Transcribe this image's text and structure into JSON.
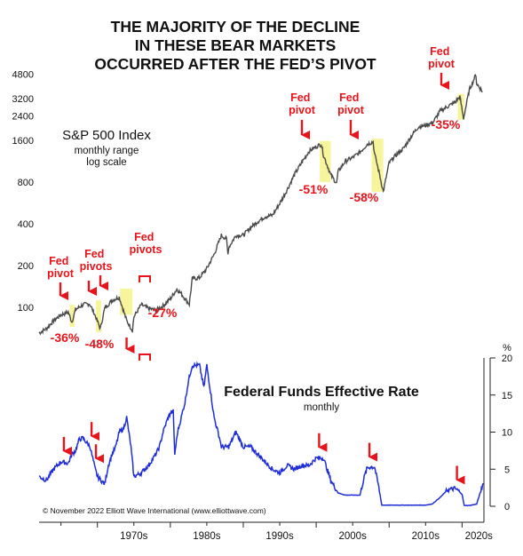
{
  "chart_data": [
    {
      "type": "line",
      "title": "THE MAJORITY OF THE DECLINE IN THESE BEAR MARKETS OCCURRED AFTER THE FED’S PIVOT",
      "title_lines": [
        "THE MAJORITY OF THE DECLINE",
        "IN THESE BEAR MARKETS",
        "OCCURRED AFTER THE FED’S PIVOT"
      ],
      "label_lines": [
        "S&P 500 Index",
        "monthly range",
        "log scale"
      ],
      "y_scale": "log",
      "yticks": [
        100,
        200,
        400,
        800,
        1600,
        2400,
        3200,
        4800
      ],
      "ylim": [
        70,
        5200
      ],
      "xlim": [
        1962,
        2023
      ],
      "grid": false,
      "color": "#4a4a4a",
      "series": [
        {
          "x": [
            1962,
            1963,
            1964,
            1965,
            1966,
            1966.5,
            1967,
            1968,
            1968.9,
            1969.5,
            1970.4,
            1971,
            1972,
            1973,
            1974,
            1974.8,
            1975,
            1976,
            1977,
            1978,
            1979,
            1980,
            1980.9,
            1981.5,
            1982.6,
            1983,
            1984,
            1985,
            1986,
            1987,
            1987.7,
            1987.9,
            1988,
            1989,
            1990,
            1991,
            1992,
            1993,
            1994,
            1995,
            1996,
            1997,
            1998,
            1999,
            2000,
            2000.7,
            2001,
            2002,
            2002.8,
            2003,
            2004,
            2005,
            2006,
            2007,
            2007.8,
            2008,
            2008.7,
            2009.2,
            2010,
            2011,
            2012,
            2013,
            2014,
            2015,
            2016,
            2017,
            2018,
            2019,
            2019.7,
            2020.2,
            2021,
            2021.9,
            2022,
            2022.8
          ],
          "y": [
            65,
            70,
            80,
            88,
            92,
            78,
            96,
            104,
            106,
            92,
            70,
            98,
            112,
            118,
            80,
            68,
            85,
            104,
            98,
            95,
            102,
            115,
            135,
            125,
            105,
            160,
            163,
            190,
            240,
            330,
            310,
            240,
            270,
            330,
            330,
            375,
            415,
            450,
            460,
            560,
            700,
            900,
            1100,
            1330,
            1440,
            1500,
            1250,
            900,
            780,
            950,
            1130,
            1200,
            1310,
            1500,
            1560,
            1280,
            900,
            680,
            1100,
            1260,
            1400,
            1700,
            2000,
            2050,
            2150,
            2600,
            2800,
            3000,
            3300,
            2300,
            3700,
            4760,
            4100,
            3600
          ]
        }
      ],
      "highlights": [
        {
          "x_start": 1966.2,
          "x_end": 1966.9,
          "ymin": 72,
          "ymax": 104
        },
        {
          "x_start": 1969.8,
          "x_end": 1970.5,
          "ymin": 66,
          "ymax": 112
        },
        {
          "x_start": 1973.1,
          "x_end": 1974.8,
          "ymin": 88,
          "ymax": 136
        },
        {
          "x_start": 2000.5,
          "x_end": 2002.0,
          "ymin": 800,
          "ymax": 1580
        },
        {
          "x_start": 2007.6,
          "x_end": 2009.2,
          "ymin": 680,
          "ymax": 1640
        },
        {
          "x_start": 2019.4,
          "x_end": 2020.3,
          "ymin": 2250,
          "ymax": 3450
        }
      ],
      "annotations": [
        {
          "pivot": "Fed\npivot",
          "drop": "-36%"
        },
        {
          "pivot": "Fed\npivots",
          "drop": "-48%"
        },
        {
          "pivot": "Fed\npivots",
          "drop": "-27%"
        },
        {
          "pivot": "Fed\npivot",
          "drop": "-51%"
        },
        {
          "pivot": "Fed\npivot",
          "drop": "-58%"
        },
        {
          "pivot": "Fed\npivot",
          "drop": "-35%"
        }
      ]
    },
    {
      "type": "line",
      "title": "Federal Funds Effective Rate",
      "subtitle": "monthly",
      "ylabel": "%",
      "yticks": [
        0,
        5,
        10,
        15,
        20
      ],
      "ylim": [
        -1,
        21
      ],
      "xlim": [
        1962,
        2023
      ],
      "grid": false,
      "color": "#1f2ed6",
      "xticks": [
        "1970s",
        "1980s",
        "1990s",
        "2000s",
        "2010s",
        "2020s"
      ],
      "xtick_positions": [
        1975,
        1985,
        1995,
        2005,
        2015,
        2022.3
      ],
      "series": [
        {
          "x": [
            1962,
            1963,
            1964,
            1965,
            1966,
            1966.5,
            1967,
            1967.5,
            1968,
            1969,
            1969.7,
            1970,
            1970.5,
            1971,
            1971.5,
            1972,
            1972.5,
            1973,
            1973.6,
            1974,
            1974.6,
            1975,
            1976,
            1977,
            1978,
            1978.5,
            1979,
            1979.7,
            1980,
            1980.4,
            1980.6,
            1981,
            1981.5,
            1982,
            1982.5,
            1983,
            1984,
            1984.6,
            1985,
            1986,
            1986.8,
            1987,
            1988,
            1989,
            1989.5,
            1990,
            1991,
            1992,
            1993,
            1994,
            1995,
            1996,
            1997,
            1998,
            1999,
            2000,
            2000.6,
            2001,
            2002,
            2003,
            2004,
            2005,
            2006,
            2006.6,
            2007,
            2007.6,
            2008,
            2008.5,
            2009,
            2010,
            2015,
            2015.9,
            2017,
            2018,
            2019,
            2019.5,
            2020,
            2020.3,
            2021,
            2022,
            2022.9
          ],
          "y": [
            4,
            3.5,
            5,
            6,
            5.8,
            7,
            7.5,
            9,
            9.2,
            8,
            5,
            4,
            3.5,
            3,
            5.5,
            7,
            8,
            10,
            10.5,
            12,
            8,
            4,
            4.5,
            5.5,
            7,
            8,
            10,
            12,
            12.5,
            12.8,
            7,
            10,
            12,
            14,
            17,
            19,
            19,
            16,
            19,
            12,
            9,
            8,
            8,
            10,
            9,
            8,
            8,
            7,
            6,
            5,
            4.5,
            5.5,
            5,
            5.5,
            5.5,
            6.5,
            6.5,
            6.5,
            3.5,
            1.8,
            1.5,
            1.5,
            1.5,
            4,
            5.2,
            5.3,
            5.3,
            3,
            0.15,
            0.15,
            0.15,
            0.3,
            1.2,
            2.2,
            2.4,
            2.1,
            1.6,
            0.1,
            0.1,
            0.3,
            3.1
          ]
        }
      ],
      "pivot_markers": [
        1965.4,
        1969.2,
        1969.8,
        1973.5,
        1974.1,
        2000.4,
        2007.3,
        2019.3
      ]
    }
  ],
  "source_note": "© November 2022 Elliott Wave International (www.elliottwave.com)"
}
